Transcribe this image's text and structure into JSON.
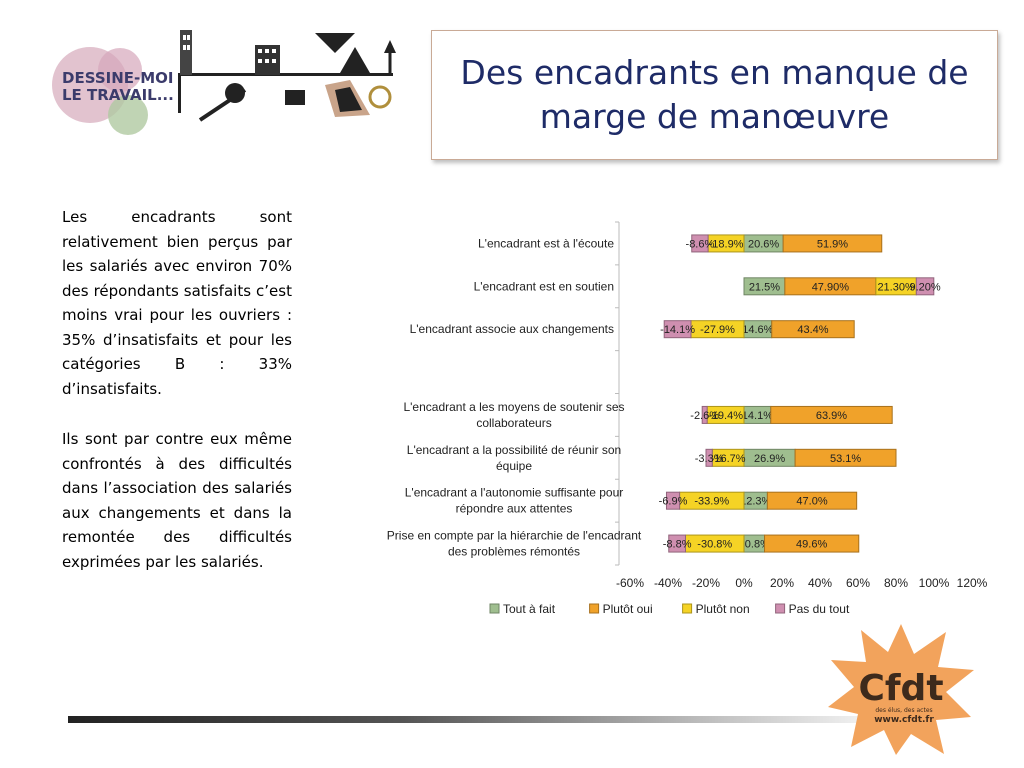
{
  "header": {
    "title_line1": "Des encadrants en manque de",
    "title_line2": "marge de manœuvre"
  },
  "logo": {
    "line1": "DESSINE-MOI",
    "line2": "LE TRAVAIL..."
  },
  "body": {
    "paragraph1": "Les encadrants sont relativement bien perçus par les salariés avec environ 70% des répondants satisfaits c’est moins vrai pour les ouvriers : 35% d’insatisfaits et pour les catégories B : 33% d’insatisfaits.",
    "paragraph2": "Ils sont par contre eux même confrontés à des difficultés dans l’association des salariés aux changements et dans la remontée des difficultés exprimées par les salariés."
  },
  "footer_logo": {
    "name": "Cfdt",
    "tagline": "des élus, des actes",
    "url": "www.cfdt.fr"
  },
  "colors": {
    "tout_a_fait": "#9fbe8f",
    "plutot_oui": "#f0a22a",
    "plutot_non": "#f5d325",
    "pas_du_tout": "#cf8fb0",
    "title": "#1e2b67"
  },
  "chart_data": {
    "type": "bar",
    "orientation": "horizontal-stacked-diverging",
    "categories": [
      "L'encadrant est à l'écoute",
      "L'encadrant est en soutien",
      "L'encadrant associe aux changements",
      "",
      "L'encadrant a les moyens de soutenir ses collaborateurs",
      "L'encadrant a la possibilité de réunir son équipe",
      "L'encadrant a l'autonomie suffisante pour répondre aux attentes",
      "Prise en compte par la hiérarchie de l'encadrant des problèmes rémontés"
    ],
    "series": [
      {
        "name": "Tout à fait",
        "values": [
          20.6,
          21.5,
          14.6,
          null,
          14.1,
          26.9,
          12.3,
          10.8
        ],
        "labels": [
          "20.6%",
          "21.5%",
          "14.6%",
          "",
          "14.1%",
          "26.9%",
          "12.3%",
          "10.8%"
        ]
      },
      {
        "name": "Plutôt oui",
        "values": [
          51.9,
          47.9,
          43.4,
          null,
          63.9,
          53.1,
          47.0,
          49.6
        ],
        "labels": [
          "51.9%",
          "47.90%",
          "43.4%",
          "",
          "63.9%",
          "53.1%",
          "47.0%",
          "49.6%"
        ]
      },
      {
        "name": "Plutôt non",
        "values": [
          -18.9,
          21.3,
          -27.9,
          null,
          -19.4,
          -16.7,
          -33.9,
          -30.8
        ],
        "labels": [
          "-18.9%",
          "21.30%",
          "-27.9%",
          "",
          "-19.4%",
          "-16.7%",
          "-33.9%",
          "-30.8%"
        ]
      },
      {
        "name": "Pas du tout",
        "values": [
          -8.6,
          9.2,
          -14.1,
          null,
          -2.6,
          -3.3,
          -6.9,
          -8.8
        ],
        "labels": [
          "-8.6%",
          "9.20%",
          "-14.1%",
          "",
          "-2.6%",
          "-3.3%",
          "-6.9%",
          "-8.8%"
        ]
      }
    ],
    "xticks": [
      "-60%",
      "-40%",
      "-20%",
      "0%",
      "20%",
      "40%",
      "60%",
      "80%",
      "100%",
      "120%"
    ],
    "xlim": [
      -60,
      120
    ],
    "grid": false,
    "legend_position": "bottom"
  }
}
